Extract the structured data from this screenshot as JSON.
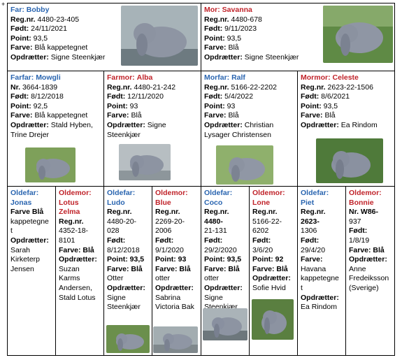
{
  "corner_mark": "+",
  "sire": {
    "role": "Far:",
    "name": "Bobby",
    "rows": [
      [
        "",
        "Reg.nr.",
        "4480-23-405"
      ],
      [
        "",
        "Født:",
        "24/11/2021"
      ],
      [
        "",
        "Point:",
        "93,5"
      ],
      [
        "",
        "Farve:",
        "Blå kappetegnet"
      ],
      [
        "",
        "Opdrætter:",
        "Signe Steenkjær"
      ]
    ]
  },
  "dam": {
    "role": "Mor:",
    "name": "Savanna",
    "rows": [
      [
        "",
        "Reg.nr.",
        "4480-678"
      ],
      [
        "",
        "Født:",
        "9/11/2023"
      ],
      [
        "",
        "Point:",
        "93,5"
      ],
      [
        "",
        "Farve:",
        "Blå"
      ],
      [
        "",
        "Opdrætter:",
        "Signe Steenkjær"
      ]
    ]
  },
  "farfar": {
    "role": "Farfar:",
    "name": "Mowgli",
    "lines": [
      [
        "Nr.",
        "3664-1839"
      ],
      [
        "Født:",
        "8/12/2018"
      ],
      [
        "Point:",
        "92,5"
      ],
      [
        "Farve:",
        "Blå kappetegnet"
      ],
      [
        "Opdrætter:",
        "Stald Hyben, Trine Drejer"
      ]
    ]
  },
  "farmor": {
    "role": "Farmor:",
    "name": "Alba",
    "lines": [
      [
        "Reg.nr.",
        "4480-21-242"
      ],
      [
        "Født:",
        "12/11/2020"
      ],
      [
        "Point:",
        "93"
      ],
      [
        "Farve:",
        "Blå"
      ],
      [
        "Opdrætter:",
        "Signe Steenkjær"
      ]
    ]
  },
  "morfar": {
    "role": "Morfar:",
    "name": "Ralf",
    "lines": [
      [
        "Reg.nr.",
        "5166-22-2202"
      ],
      [
        "Født:",
        "5/4/2022"
      ],
      [
        "Point:",
        "93"
      ],
      [
        "Farve:",
        "Blå"
      ],
      [
        "Opdrætter:",
        "Christian Lysager Christensen"
      ]
    ]
  },
  "mormor": {
    "role": "Mormor:",
    "name": "Celeste",
    "lines": [
      [
        "Reg.nr.",
        "2623-22-1506"
      ],
      [
        "Født:",
        "8/6/2021"
      ],
      [
        "Point:",
        "93,5"
      ],
      [
        "Farve:",
        "Blå"
      ],
      [
        "Opdrætter:",
        "Ea Rindom"
      ]
    ]
  },
  "gg": [
    {
      "role": "Oldefar:",
      "name": "Jonas",
      "lines": [
        "Farve Blå",
        "kappetegne",
        "t",
        "Opdrætter:",
        "Sarah",
        "Kirketerp",
        "Jensen"
      ],
      "bold": [
        true,
        false,
        false,
        true,
        false,
        false,
        false
      ]
    },
    {
      "role": "Oldemor:",
      "name": "Lotus Zelma",
      "lines": [
        "Reg.nr.",
        "4352-18-",
        "8101",
        "Farve: Blå",
        "Opdrætter:",
        "Suzan",
        "Karms",
        "Andersen,",
        "Stald Lotus"
      ],
      "bold": [
        true,
        false,
        false,
        true,
        true,
        false,
        false,
        false,
        false
      ]
    },
    {
      "role": "Oldefar:",
      "name": "Ludo",
      "lines": [
        "Reg.nr.",
        "4480-20-",
        "028",
        "Født:",
        "8/12/2018",
        "Point: 93,5",
        "Farve: Blå",
        "Otter",
        "Opdrætter:",
        "Signe",
        "Steenkjær"
      ],
      "bold": [
        true,
        false,
        false,
        true,
        false,
        true,
        true,
        false,
        true,
        false,
        false
      ]
    },
    {
      "role": "Oldemor:",
      "name": "Blue",
      "lines": [
        "Reg.nr.",
        "2269-20-",
        "2006",
        "Født:",
        "9/1/2020",
        "Point: 93",
        "Farve: Blå",
        "otter",
        "Opdrætter:",
        "Sabrina",
        "Victoria Bak"
      ],
      "bold": [
        true,
        false,
        false,
        true,
        false,
        true,
        true,
        false,
        true,
        false,
        false
      ]
    },
    {
      "role": "Oldefar:",
      "name": "Coco",
      "lines": [
        "Reg.nr. 4480-",
        "21-131",
        "Født:",
        "29/2/2020",
        "Point: 93,5",
        "Farve: Blå",
        "otter",
        "Opdrætter:",
        "Signe",
        "Steenkjær"
      ],
      "bold": [
        true,
        false,
        true,
        false,
        true,
        true,
        false,
        true,
        false,
        false
      ]
    },
    {
      "role": "Oldemor:",
      "name": "Lone",
      "lines": [
        "Reg.nr.",
        "5166-22-",
        "6202",
        "Født:",
        "3/6/20",
        "Point: 92",
        "Farve: Blå",
        "Opdrætter:",
        "Sofie Hvid"
      ],
      "bold": [
        true,
        false,
        false,
        true,
        false,
        true,
        true,
        true,
        false
      ]
    },
    {
      "role": "Oldefar:",
      "name": "Piet",
      "lines": [
        "Reg.nr. 2623-",
        "1306",
        "Født:",
        "29/4/20",
        "Farve:",
        "Havana",
        "kappetegne",
        "t",
        "Opdrætter:",
        "Ea Rindom"
      ],
      "bold": [
        true,
        false,
        true,
        false,
        true,
        false,
        false,
        false,
        true,
        false
      ]
    },
    {
      "role": "Oldemor:",
      "name": "Bonnie",
      "lines": [
        "Nr. W86-",
        "937",
        "Født:",
        "1/8/19",
        "Farve: Blå",
        "Opdrætter:",
        "Anne",
        "Fredeiksson",
        "(Sverige)"
      ],
      "bold": [
        true,
        false,
        true,
        false,
        true,
        true,
        false,
        false,
        false
      ]
    }
  ],
  "colors": {
    "male_title": "#2a65b0",
    "female_title": "#c0232a",
    "rabbit": "#8d929e",
    "grass": "#4f7a3a"
  }
}
